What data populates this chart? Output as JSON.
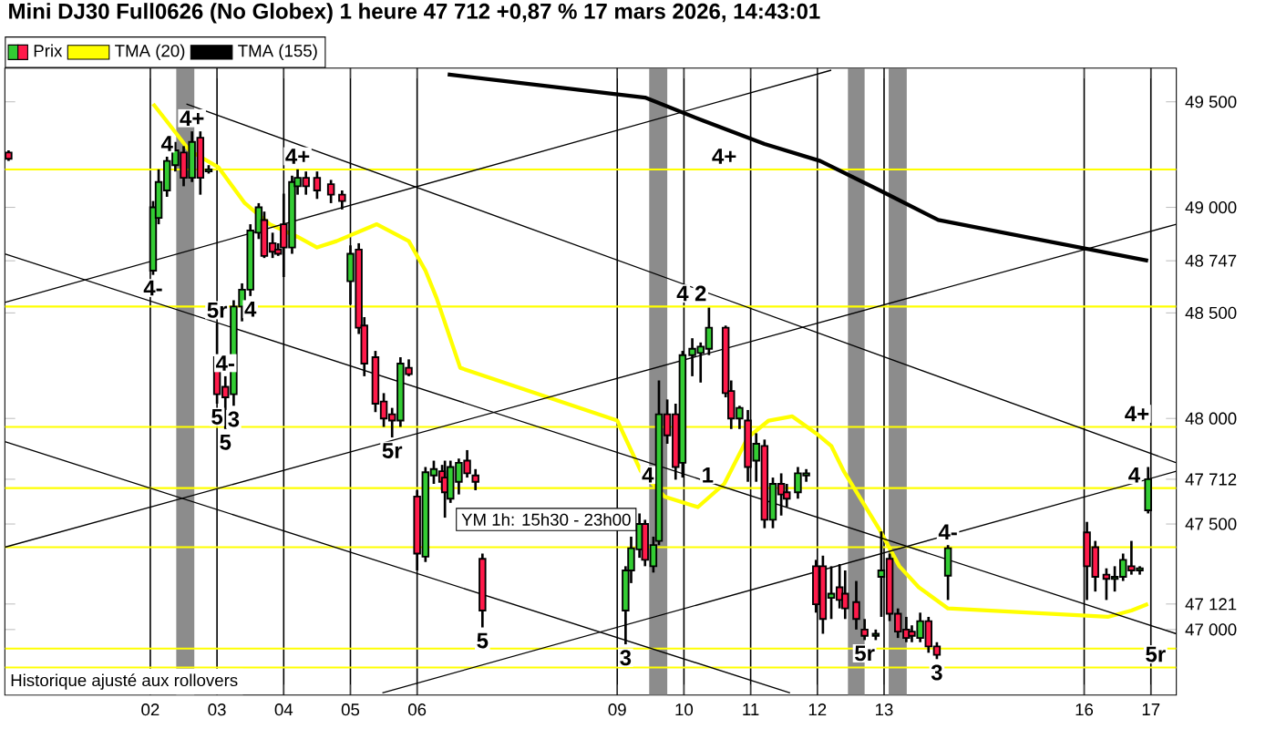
{
  "chart_data": {
    "type": "candlestick",
    "title": "Mini DJ30 Full0626 (No Globex) 1 heure 47 712 +0,87 % 17 mars 2026, 14:43:01",
    "xlim": [
      "2026-02-27T19:40",
      "2026-03-17T09:10"
    ],
    "ylim": [
      46690,
      49660
    ],
    "xticks": [
      {
        "value": "2026-03-02",
        "label": "02"
      },
      {
        "value": "2026-03-03",
        "label": "03"
      },
      {
        "value": "2026-03-04",
        "label": "04"
      },
      {
        "value": "2026-03-05",
        "label": "05"
      },
      {
        "value": "2026-03-06",
        "label": "06"
      },
      {
        "value": "2026-03-09",
        "label": "09"
      },
      {
        "value": "2026-03-10",
        "label": "10"
      },
      {
        "value": "2026-03-11",
        "label": "11"
      },
      {
        "value": "2026-03-12",
        "label": "12"
      },
      {
        "value": "2026-03-13",
        "label": "13"
      },
      {
        "value": "2026-03-16",
        "label": "16"
      },
      {
        "value": "2026-03-17",
        "label": "17"
      }
    ],
    "yticks": [
      {
        "value": 47000,
        "label": "47 000"
      },
      {
        "value": 47121,
        "label": "47 121"
      },
      {
        "value": 47500,
        "label": "47 500"
      },
      {
        "value": 47712,
        "label": "47 712"
      },
      {
        "value": 48000,
        "label": "48 000"
      },
      {
        "value": 48500,
        "label": "48 500"
      },
      {
        "value": 48747,
        "label": "48 747"
      },
      {
        "value": 49000,
        "label": "49 000"
      },
      {
        "value": 49500,
        "label": "49 500"
      }
    ],
    "grid": "x",
    "legend": "top left",
    "bands": [
      {
        "axis": "x",
        "from": "2026-03-02T09:20",
        "to": "2026-03-02T15:50",
        "color": "#8c8c8c"
      },
      {
        "axis": "x",
        "from": "2026-03-09T11:30",
        "to": "2026-03-09T18:00",
        "color": "#8c8c8c"
      },
      {
        "axis": "x",
        "from": "2026-03-12T11:00",
        "to": "2026-03-12T17:00",
        "color": "#8c8c8c"
      },
      {
        "axis": "x",
        "from": "2026-03-13T01:40",
        "to": "2026-03-13T08:10",
        "color": "#8c8c8c"
      }
    ],
    "ref_lines": [
      {
        "axis": "y",
        "value": 49180,
        "color": "#ffff00"
      },
      {
        "axis": "y",
        "value": 48530,
        "color": "#ffff00"
      },
      {
        "axis": "y",
        "value": 47960,
        "color": "#ffff00"
      },
      {
        "axis": "y",
        "value": 47670,
        "color": "#ffff00"
      },
      {
        "axis": "y",
        "value": 47390,
        "color": "#ffff00"
      },
      {
        "axis": "y",
        "value": 46910,
        "color": "#ffff00"
      },
      {
        "axis": "y",
        "value": 46820,
        "color": "#ffff00"
      }
    ],
    "series": [
      {
        "name": "Prix",
        "x": [
          "2026-02-27T21:00",
          "2026-03-02T01:00",
          "2026-03-02T03:00",
          "2026-03-02T06:00",
          "2026-03-02T09:00",
          "2026-03-02T12:00",
          "2026-03-02T15:00",
          "2026-03-02T18:00",
          "2026-03-02T21:00",
          "2026-03-03T00:00",
          "2026-03-03T03:00",
          "2026-03-03T06:00",
          "2026-03-03T09:00",
          "2026-03-03T12:00",
          "2026-03-03T15:00",
          "2026-03-03T17:00",
          "2026-03-03T20:00",
          "2026-03-03T22:00",
          "2026-03-04T00:00",
          "2026-03-04T03:00",
          "2026-03-04T05:00",
          "2026-03-04T08:00",
          "2026-03-04T12:00",
          "2026-03-04T17:00",
          "2026-03-04T21:00",
          "2026-03-05T00:00",
          "2026-03-05T03:00",
          "2026-03-05T05:00",
          "2026-03-05T09:00",
          "2026-03-05T12:00",
          "2026-03-05T15:00",
          "2026-03-05T18:00",
          "2026-03-05T21:00",
          "2026-03-06T00:00",
          "2026-03-06T03:00",
          "2026-03-06T06:00",
          "2026-03-06T09:00",
          "2026-03-06T10:00",
          "2026-03-06T12:00",
          "2026-03-06T15:00",
          "2026-03-06T18:00",
          "2026-03-06T21:00",
          "2026-03-06T23:30",
          "2026-03-09T03:00",
          "2026-03-09T05:00",
          "2026-03-09T08:00",
          "2026-03-09T10:00",
          "2026-03-09T13:00",
          "2026-03-09T15:00",
          "2026-03-09T18:00",
          "2026-03-09T21:00",
          "2026-03-09T23:30",
          "2026-03-10T03:00",
          "2026-03-10T06:00",
          "2026-03-10T09:00",
          "2026-03-10T15:00",
          "2026-03-10T17:00",
          "2026-03-10T20:00",
          "2026-03-10T23:00",
          "2026-03-11T02:00",
          "2026-03-11T05:00",
          "2026-03-11T08:00",
          "2026-03-11T11:00",
          "2026-03-11T13:00",
          "2026-03-11T17:00",
          "2026-03-11T20:00",
          "2026-03-11T23:30",
          "2026-03-12T02:00",
          "2026-03-12T05:00",
          "2026-03-12T08:00",
          "2026-03-12T10:00",
          "2026-03-12T14:00",
          "2026-03-12T17:00",
          "2026-03-12T21:00",
          "2026-03-12T23:00",
          "2026-03-13T02:00",
          "2026-03-13T05:00",
          "2026-03-13T08:00",
          "2026-03-13T10:00",
          "2026-03-13T13:00",
          "2026-03-13T16:00",
          "2026-03-13T19:00",
          "2026-03-13T23:00",
          "2026-03-16T01:00",
          "2026-03-16T04:00",
          "2026-03-16T08:00",
          "2026-03-16T11:00",
          "2026-03-16T14:00",
          "2026-03-16T17:00",
          "2026-03-16T20:00",
          "2026-03-16T23:00"
        ],
        "ohlc": [
          [
            49260,
            49270,
            49220,
            49230
          ],
          [
            48700,
            49030,
            48680,
            49000
          ],
          [
            48950,
            49180,
            48920,
            49120
          ],
          [
            49080,
            49240,
            49050,
            49220
          ],
          [
            49200,
            49310,
            49170,
            49270
          ],
          [
            49260,
            49290,
            49100,
            49140
          ],
          [
            49140,
            49360,
            49120,
            49310
          ],
          [
            49330,
            49360,
            49060,
            49140
          ],
          [
            49170,
            49200,
            49160,
            49180
          ],
          [
            48290,
            48450,
            48070,
            48115
          ],
          [
            48150,
            48200,
            47950,
            48100
          ],
          [
            48115,
            48560,
            48060,
            48530
          ],
          [
            48530,
            48640,
            48460,
            48610
          ],
          [
            48610,
            48920,
            48580,
            48890
          ],
          [
            48880,
            49020,
            48850,
            49000
          ],
          [
            48940,
            48980,
            48760,
            48770
          ],
          [
            48830,
            48880,
            48760,
            48790
          ],
          [
            48800,
            48830,
            48770,
            48780
          ],
          [
            48920,
            49065,
            48670,
            48810
          ],
          [
            48810,
            49150,
            48780,
            49120
          ],
          [
            49100,
            49180,
            49060,
            49140
          ],
          [
            49140,
            49170,
            49060,
            49100
          ],
          [
            49140,
            49170,
            49040,
            49080
          ],
          [
            49110,
            49130,
            49020,
            49060
          ],
          [
            49060,
            49080,
            48990,
            49030
          ],
          [
            48650,
            48820,
            48540,
            48780
          ],
          [
            48800,
            48830,
            48400,
            48430
          ],
          [
            48440,
            48480,
            48200,
            48260
          ],
          [
            48290,
            48320,
            48030,
            48070
          ],
          [
            48080,
            48120,
            47960,
            48000
          ],
          [
            48020,
            48050,
            47910,
            47990
          ],
          [
            47990,
            48290,
            47960,
            48260
          ],
          [
            48240,
            48280,
            48200,
            48210
          ],
          [
            47630,
            47660,
            47280,
            47360
          ],
          [
            47345,
            47770,
            47320,
            47745
          ],
          [
            47730,
            47800,
            47690,
            47760
          ],
          [
            47750,
            47780,
            47660,
            47700
          ],
          [
            47720,
            47800,
            47530,
            47650
          ],
          [
            47620,
            47800,
            47600,
            47770
          ],
          [
            47700,
            47810,
            47640,
            47790
          ],
          [
            47800,
            47850,
            47720,
            47740
          ],
          [
            47730,
            47760,
            47660,
            47700
          ],
          [
            47335,
            47360,
            47010,
            47090
          ],
          [
            47090,
            47300,
            46930,
            47280
          ],
          [
            47280,
            47440,
            47220,
            47385
          ],
          [
            47380,
            47550,
            47340,
            47500
          ],
          [
            47500,
            47520,
            47300,
            47330
          ],
          [
            47300,
            47440,
            47270,
            47400
          ],
          [
            47420,
            48180,
            47400,
            48020
          ],
          [
            48020,
            48090,
            47880,
            47920
          ],
          [
            48020,
            48070,
            47710,
            47770
          ],
          [
            47790,
            48320,
            47720,
            48300
          ],
          [
            48300,
            48380,
            48200,
            48330
          ],
          [
            48310,
            48360,
            48170,
            48340
          ],
          [
            48330,
            48525,
            48300,
            48430
          ],
          [
            48430,
            48440,
            48100,
            48120
          ],
          [
            48130,
            48180,
            47950,
            48000
          ],
          [
            48000,
            48060,
            47950,
            48050
          ],
          [
            47990,
            48040,
            47700,
            47770
          ],
          [
            47800,
            47930,
            47700,
            47880
          ],
          [
            47870,
            47900,
            47480,
            47520
          ],
          [
            47520,
            47720,
            47480,
            47690
          ],
          [
            47690,
            47740,
            47540,
            47640
          ],
          [
            47650,
            47690,
            47580,
            47620
          ],
          [
            47650,
            47770,
            47620,
            47740
          ],
          [
            47730,
            47760,
            47700,
            47740
          ],
          [
            47300,
            47330,
            47080,
            47120
          ],
          [
            47300,
            47350,
            46980,
            47050
          ],
          [
            47150,
            47300,
            47050,
            47170
          ],
          [
            47200,
            47310,
            47100,
            47140
          ],
          [
            47170,
            47280,
            47050,
            47100
          ],
          [
            47130,
            47230,
            47000,
            47050
          ],
          [
            47000,
            47050,
            46950,
            46970
          ],
          [
            46970,
            47000,
            46950,
            46980
          ],
          [
            47250,
            47465,
            47060,
            47280
          ],
          [
            47335,
            47360,
            47040,
            47075
          ],
          [
            47075,
            47100,
            46960,
            46990
          ],
          [
            47000,
            47060,
            46940,
            46960
          ],
          [
            46990,
            47020,
            46940,
            46970
          ],
          [
            46960,
            47080,
            46940,
            47040
          ],
          [
            47040,
            47060,
            46890,
            46920
          ],
          [
            46920,
            46940,
            46860,
            46880
          ],
          [
            47255,
            47400,
            47140,
            47385
          ],
          [
            47460,
            47510,
            47140,
            47300
          ],
          [
            47390,
            47420,
            47180,
            47250
          ],
          [
            47260,
            47290,
            47140,
            47240
          ],
          [
            47240,
            47300,
            47180,
            47250
          ],
          [
            47250,
            47360,
            47230,
            47330
          ],
          [
            47300,
            47420,
            47260,
            47280
          ],
          [
            47280,
            47300,
            47260,
            47290
          ],
          [
            47565,
            47770,
            47550,
            47712
          ]
        ],
        "colors": [
          "#ff1a4a",
          "#33cc33",
          "#33cc33",
          "#33cc33",
          "#33cc33",
          "#ff1a4a",
          "#33cc33",
          "#ff1a4a",
          "#33cc33",
          "#ff1a4a",
          "#ff1a4a",
          "#33cc33",
          "#33cc33",
          "#33cc33",
          "#33cc33",
          "#ff1a4a",
          "#ff1a4a",
          "#ff1a4a",
          "#ff1a4a",
          "#33cc33",
          "#33cc33",
          "#ff1a4a",
          "#ff1a4a",
          "#ff1a4a",
          "#ff1a4a",
          "#33cc33",
          "#ff1a4a",
          "#ff1a4a",
          "#ff1a4a",
          "#ff1a4a",
          "#ff1a4a",
          "#33cc33",
          "#ff1a4a",
          "#ff1a4a",
          "#33cc33",
          "#33cc33",
          "#ff1a4a",
          "#ff1a4a",
          "#33cc33",
          "#33cc33",
          "#ff1a4a",
          "#ff1a4a",
          "#ff1a4a",
          "#33cc33",
          "#33cc33",
          "#33cc33",
          "#ff1a4a",
          "#33cc33",
          "#33cc33",
          "#ff1a4a",
          "#ff1a4a",
          "#33cc33",
          "#33cc33",
          "#33cc33",
          "#33cc33",
          "#ff1a4a",
          "#ff1a4a",
          "#33cc33",
          "#ff1a4a",
          "#33cc33",
          "#ff1a4a",
          "#33cc33",
          "#ff1a4a",
          "#ff1a4a",
          "#33cc33",
          "#33cc33",
          "#ff1a4a",
          "#ff1a4a",
          "#33cc33",
          "#ff1a4a",
          "#ff1a4a",
          "#ff1a4a",
          "#ff1a4a",
          "#33cc33",
          "#33cc33",
          "#ff1a4a",
          "#ff1a4a",
          "#ff1a4a",
          "#ff1a4a",
          "#33cc33",
          "#ff1a4a",
          "#ff1a4a",
          "#33cc33",
          "#ff1a4a",
          "#ff1a4a",
          "#ff1a4a",
          "#33cc33",
          "#33cc33",
          "#ff1a4a",
          "#33cc33",
          "#33cc33"
        ]
      },
      {
        "name": "TMA (20)",
        "type": "line",
        "color": "#ffff00",
        "x": [
          "2026-03-02T01:00",
          "2026-03-02T07:00",
          "2026-03-02T14:00",
          "2026-03-03T00:30",
          "2026-03-03T10:00",
          "2026-03-03T19:00",
          "2026-03-04T05:00",
          "2026-03-04T12:00",
          "2026-03-04T19:00",
          "2026-03-05T09:30",
          "2026-03-05T21:00",
          "2026-03-06T03:00",
          "2026-03-06T07:00",
          "2026-03-06T15:30",
          "2026-03-09T00:00",
          "2026-03-09T08:30",
          "2026-03-09T17:00",
          "2026-03-10T05:00",
          "2026-03-10T14:30",
          "2026-03-10T23:00",
          "2026-03-11T06:30",
          "2026-03-11T15:00",
          "2026-03-11T23:30",
          "2026-03-12T05:00",
          "2026-03-12T09:30",
          "2026-03-12T22:30",
          "2026-03-13T05:30",
          "2026-03-13T12:30",
          "2026-03-13T23:00",
          "2026-03-16T08:30",
          "2026-03-16T17:00",
          "2026-03-16T23:00"
        ],
        "values": [
          49490,
          49390,
          49270,
          49190,
          49020,
          48920,
          48860,
          48810,
          48840,
          48920,
          48840,
          48700,
          48570,
          48240,
          47990,
          47750,
          47630,
          47580,
          47690,
          47910,
          47990,
          48010,
          47930,
          47870,
          47750,
          47470,
          47300,
          47200,
          47100,
          47060,
          47090,
          47121
        ]
      },
      {
        "name": "TMA (155)",
        "type": "line",
        "color": "#000000",
        "x": [
          "2026-03-06T11:00",
          "2026-03-09T10:00",
          "2026-03-10T07:00",
          "2026-03-11T05:00",
          "2026-03-12T01:00",
          "2026-03-12T22:30",
          "2026-03-13T19:30",
          "2026-03-16T23:00"
        ],
        "values": [
          49630,
          49520,
          49410,
          49300,
          49220,
          49080,
          48940,
          48747
        ]
      },
      {
        "type": "line",
        "color": "#000000",
        "x": [
          "2026-02-27T19:40",
          "2026-03-17T09:10"
        ],
        "values": [
          48780,
          46980
        ]
      },
      {
        "type": "line",
        "color": "#000000",
        "x": [
          "2026-03-02T13:00",
          "2026-03-17T09:10"
        ],
        "values": [
          49490,
          47790
        ]
      },
      {
        "type": "line",
        "color": "#000000",
        "x": [
          "2026-02-27T19:40",
          "2026-03-11T14:10"
        ],
        "values": [
          47890,
          46700
        ]
      },
      {
        "type": "line",
        "color": "#000000",
        "x": [
          "2026-02-27T19:40",
          "2026-03-12T05:00"
        ],
        "values": [
          48550,
          49650
        ]
      },
      {
        "type": "line",
        "color": "#000000",
        "x": [
          "2026-02-27T19:40",
          "2026-03-17T09:10"
        ],
        "values": [
          47390,
          48920
        ]
      },
      {
        "type": "line",
        "color": "#000000",
        "x": [
          "2026-03-05T11:30",
          "2026-03-17T09:10"
        ],
        "values": [
          46700,
          47750
        ]
      }
    ],
    "annotations": [
      "Historique ajusté aux rollovers",
      "YM 1h: 15h30 - 23h00",
      {
        "text": "4+",
        "x": "2026-03-02T15:00",
        "y": 49360
      },
      {
        "text": "4",
        "x": "2026-03-02T06:00",
        "y": 49240
      },
      {
        "text": "4-",
        "x": "2026-03-02T01:00",
        "y": 48680
      },
      {
        "text": "5r",
        "x": "2026-03-03T00:00",
        "y": 48450
      },
      {
        "text": "5",
        "x": "2026-03-03T00:00",
        "y": 48070
      },
      {
        "text": "5",
        "x": "2026-03-03T03:00",
        "y": 47950
      },
      {
        "text": "3",
        "x": "2026-03-03T06:00",
        "y": 48060
      },
      {
        "text": "4-",
        "x": "2026-03-03T03:00",
        "y": 48200
      },
      {
        "text": "4",
        "x": "2026-03-03T12:00",
        "y": 48580
      },
      {
        "text": "4+",
        "x": "2026-03-04T05:00",
        "y": 49180
      },
      {
        "text": "5r",
        "x": "2026-03-05T15:00",
        "y": 47910
      },
      {
        "text": "4+",
        "x": "2026-03-10T14:30",
        "y": 49180
      },
      {
        "text": "4",
        "x": "2026-03-09T23:30",
        "y": 48530
      },
      {
        "text": "2",
        "x": "2026-03-10T06:00",
        "y": 48530
      },
      {
        "text": "4",
        "x": "2026-03-09T11:00",
        "y": 47670
      },
      {
        "text": "1",
        "x": "2026-03-10T08:30",
        "y": 47670
      },
      {
        "text": "5",
        "x": "2026-03-06T23:30",
        "y": 47010
      },
      {
        "text": "3",
        "x": "2026-03-09T03:00",
        "y": 46930
      },
      {
        "text": "5r",
        "x": "2026-03-12T17:00",
        "y": 46950
      },
      {
        "text": "3",
        "x": "2026-03-13T19:00",
        "y": 46860
      },
      {
        "text": "4+",
        "x": "2026-03-16T19:00",
        "y": 47960
      },
      {
        "text": "4",
        "x": "2026-03-16T18:00",
        "y": 47670
      },
      {
        "text": "4-",
        "x": "2026-03-13T23:00",
        "y": 47400
      },
      {
        "text": "5r",
        "x": "2026-03-17T01:40",
        "y": 46820
      }
    ]
  }
}
